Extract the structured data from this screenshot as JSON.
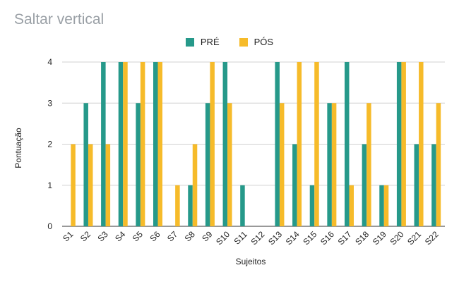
{
  "chart_data": {
    "type": "bar",
    "title": "Saltar vertical",
    "xlabel": "Sujeitos",
    "ylabel": "Pontuação",
    "ylim": [
      0,
      4
    ],
    "yticks": [
      0,
      1,
      2,
      3,
      4
    ],
    "grid": true,
    "legend_position": "top",
    "categories": [
      "S1",
      "S2",
      "S3",
      "S4",
      "S5",
      "S6",
      "S7",
      "S8",
      "S9",
      "S10",
      "S11",
      "S12",
      "S13",
      "S14",
      "S15",
      "S16",
      "S17",
      "S18",
      "S19",
      "S20",
      "S21",
      "S22"
    ],
    "series": [
      {
        "name": "PRÉ",
        "color": "#26998a",
        "values": [
          0,
          3,
          4,
          4,
          3,
          4,
          0,
          1,
          3,
          4,
          1,
          0,
          4,
          2,
          1,
          3,
          4,
          2,
          1,
          4,
          2,
          2
        ]
      },
      {
        "name": "PÓS",
        "color": "#f6bb2a",
        "values": [
          2,
          2,
          2,
          4,
          4,
          4,
          1,
          2,
          4,
          3,
          0,
          0,
          3,
          4,
          4,
          3,
          1,
          3,
          1,
          4,
          4,
          3
        ]
      }
    ]
  }
}
